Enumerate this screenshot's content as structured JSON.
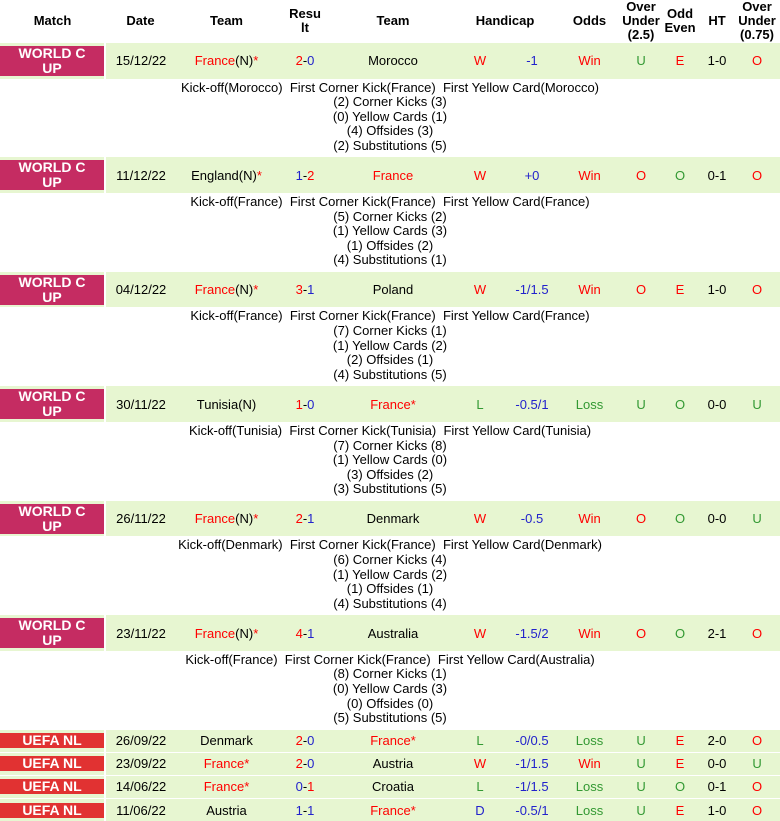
{
  "header": {
    "cols": [
      "Match",
      "Date",
      "Team",
      "Result",
      "Team",
      "Handicap",
      "Odds",
      "Over Under (2.5)",
      "Odd Even",
      "HT",
      "Over Under (0.75)"
    ]
  },
  "symbols": {
    "star": "*",
    "dash": "-"
  },
  "colors": {
    "row_green": "#e7f6d1",
    "worldcup_badge": "#c52c62",
    "uefanl_badge": "#e13232",
    "win_red": "#ff0000",
    "loss_green": "#339933",
    "handicap_blue": "#2222cc"
  },
  "rows": [
    {
      "competition": "WORLD CUP",
      "type": "worldcup",
      "date": "15/12/22",
      "home": {
        "name": "France",
        "suffix": "(N)",
        "star": true,
        "red": true
      },
      "result": {
        "home": "2",
        "away": "0",
        "home_color": "red",
        "away_color": "blue"
      },
      "away": {
        "name": "Morocco",
        "suffix": "",
        "star": false,
        "red": false
      },
      "wld": {
        "text": "W",
        "color": "red"
      },
      "handicap": "-1",
      "odds": {
        "text": "Win",
        "color": "red"
      },
      "over_under_25": {
        "text": "U",
        "color": "green"
      },
      "odd_even": {
        "text": "E",
        "color": "red"
      },
      "ht": "1-0",
      "over_under_075": {
        "text": "O",
        "color": "red"
      },
      "details": {
        "firsts": "Kick-off(Morocco)  First Corner Kick(France)  First Yellow Card(Morocco)",
        "stats": [
          "(2) Corner Kicks (3)",
          "(0) Yellow Cards (1)",
          "(4) Offsides (3)",
          "(2) Substitutions (5)"
        ]
      }
    },
    {
      "competition": "WORLD CUP",
      "type": "worldcup",
      "date": "11/12/22",
      "home": {
        "name": "England",
        "suffix": "(N)",
        "star": true,
        "red": false
      },
      "result": {
        "home": "1",
        "away": "2",
        "home_color": "blue",
        "away_color": "red"
      },
      "away": {
        "name": "France",
        "suffix": "",
        "star": false,
        "red": true
      },
      "wld": {
        "text": "W",
        "color": "red"
      },
      "handicap": "+0",
      "odds": {
        "text": "Win",
        "color": "red"
      },
      "over_under_25": {
        "text": "O",
        "color": "red"
      },
      "odd_even": {
        "text": "O",
        "color": "green"
      },
      "ht": "0-1",
      "over_under_075": {
        "text": "O",
        "color": "red"
      },
      "details": {
        "firsts": "Kick-off(France)  First Corner Kick(France)  First Yellow Card(France)",
        "stats": [
          "(5) Corner Kicks (2)",
          "(1) Yellow Cards (3)",
          "(1) Offsides (2)",
          "(4) Substitutions (1)"
        ]
      }
    },
    {
      "competition": "WORLD CUP",
      "type": "worldcup",
      "date": "04/12/22",
      "home": {
        "name": "France",
        "suffix": "(N)",
        "star": true,
        "red": true
      },
      "result": {
        "home": "3",
        "away": "1",
        "home_color": "red",
        "away_color": "blue"
      },
      "away": {
        "name": "Poland",
        "suffix": "",
        "star": false,
        "red": false
      },
      "wld": {
        "text": "W",
        "color": "red"
      },
      "handicap": "-1/1.5",
      "odds": {
        "text": "Win",
        "color": "red"
      },
      "over_under_25": {
        "text": "O",
        "color": "red"
      },
      "odd_even": {
        "text": "E",
        "color": "red"
      },
      "ht": "1-0",
      "over_under_075": {
        "text": "O",
        "color": "red"
      },
      "details": {
        "firsts": "Kick-off(France)  First Corner Kick(France)  First Yellow Card(France)",
        "stats": [
          "(7) Corner Kicks (1)",
          "(1) Yellow Cards (2)",
          "(2) Offsides (1)",
          "(4) Substitutions (5)"
        ]
      }
    },
    {
      "competition": "WORLD CUP",
      "type": "worldcup",
      "date": "30/11/22",
      "home": {
        "name": "Tunisia",
        "suffix": "(N)",
        "star": false,
        "red": false
      },
      "result": {
        "home": "1",
        "away": "0",
        "home_color": "red",
        "away_color": "blue"
      },
      "away": {
        "name": "France",
        "suffix": "",
        "star": true,
        "red": true
      },
      "wld": {
        "text": "L",
        "color": "green"
      },
      "handicap": "-0.5/1",
      "odds": {
        "text": "Loss",
        "color": "green"
      },
      "over_under_25": {
        "text": "U",
        "color": "green"
      },
      "odd_even": {
        "text": "O",
        "color": "green"
      },
      "ht": "0-0",
      "over_under_075": {
        "text": "U",
        "color": "green"
      },
      "details": {
        "firsts": "Kick-off(Tunisia)  First Corner Kick(Tunisia)  First Yellow Card(Tunisia)",
        "stats": [
          "(7) Corner Kicks (8)",
          "(1) Yellow Cards (0)",
          "(3) Offsides (2)",
          "(3) Substitutions (5)"
        ]
      }
    },
    {
      "competition": "WORLD CUP",
      "type": "worldcup",
      "date": "26/11/22",
      "home": {
        "name": "France",
        "suffix": "(N)",
        "star": true,
        "red": true
      },
      "result": {
        "home": "2",
        "away": "1",
        "home_color": "red",
        "away_color": "blue"
      },
      "away": {
        "name": "Denmark",
        "suffix": "",
        "star": false,
        "red": false
      },
      "wld": {
        "text": "W",
        "color": "red"
      },
      "handicap": "-0.5",
      "odds": {
        "text": "Win",
        "color": "red"
      },
      "over_under_25": {
        "text": "O",
        "color": "red"
      },
      "odd_even": {
        "text": "O",
        "color": "green"
      },
      "ht": "0-0",
      "over_under_075": {
        "text": "U",
        "color": "green"
      },
      "details": {
        "firsts": "Kick-off(Denmark)  First Corner Kick(France)  First Yellow Card(Denmark)",
        "stats": [
          "(6) Corner Kicks (4)",
          "(1) Yellow Cards (2)",
          "(1) Offsides (1)",
          "(4) Substitutions (4)"
        ]
      }
    },
    {
      "competition": "WORLD CUP",
      "type": "worldcup",
      "date": "23/11/22",
      "home": {
        "name": "France",
        "suffix": "(N)",
        "star": true,
        "red": true
      },
      "result": {
        "home": "4",
        "away": "1",
        "home_color": "red",
        "away_color": "blue"
      },
      "away": {
        "name": "Australia",
        "suffix": "",
        "star": false,
        "red": false
      },
      "wld": {
        "text": "W",
        "color": "red"
      },
      "handicap": "-1.5/2",
      "odds": {
        "text": "Win",
        "color": "red"
      },
      "over_under_25": {
        "text": "O",
        "color": "red"
      },
      "odd_even": {
        "text": "O",
        "color": "green"
      },
      "ht": "2-1",
      "over_under_075": {
        "text": "O",
        "color": "red"
      },
      "details": {
        "firsts": "Kick-off(France)  First Corner Kick(France)  First Yellow Card(Australia)",
        "stats": [
          "(8) Corner Kicks (1)",
          "(0) Yellow Cards (3)",
          "(0) Offsides (0)",
          "(5) Substitutions (5)"
        ]
      }
    },
    {
      "competition": "UEFA NL",
      "type": "uefanl",
      "date": "26/09/22",
      "home": {
        "name": "Denmark",
        "suffix": "",
        "star": false,
        "red": false
      },
      "result": {
        "home": "2",
        "away": "0",
        "home_color": "red",
        "away_color": "blue"
      },
      "away": {
        "name": "France",
        "suffix": "",
        "star": true,
        "red": true
      },
      "wld": {
        "text": "L",
        "color": "green"
      },
      "handicap": "-0/0.5",
      "odds": {
        "text": "Loss",
        "color": "green"
      },
      "over_under_25": {
        "text": "U",
        "color": "green"
      },
      "odd_even": {
        "text": "E",
        "color": "red"
      },
      "ht": "2-0",
      "over_under_075": {
        "text": "O",
        "color": "red"
      },
      "details": null
    },
    {
      "competition": "UEFA NL",
      "type": "uefanl",
      "date": "23/09/22",
      "home": {
        "name": "France",
        "suffix": "",
        "star": true,
        "red": true
      },
      "result": {
        "home": "2",
        "away": "0",
        "home_color": "red",
        "away_color": "blue"
      },
      "away": {
        "name": "Austria",
        "suffix": "",
        "star": false,
        "red": false
      },
      "wld": {
        "text": "W",
        "color": "red"
      },
      "handicap": "-1/1.5",
      "odds": {
        "text": "Win",
        "color": "red"
      },
      "over_under_25": {
        "text": "U",
        "color": "green"
      },
      "odd_even": {
        "text": "E",
        "color": "red"
      },
      "ht": "0-0",
      "over_under_075": {
        "text": "U",
        "color": "green"
      },
      "details": null
    },
    {
      "competition": "UEFA NL",
      "type": "uefanl",
      "date": "14/06/22",
      "home": {
        "name": "France",
        "suffix": "",
        "star": true,
        "red": true
      },
      "result": {
        "home": "0",
        "away": "1",
        "home_color": "blue",
        "away_color": "red"
      },
      "away": {
        "name": "Croatia",
        "suffix": "",
        "star": false,
        "red": false
      },
      "wld": {
        "text": "L",
        "color": "green"
      },
      "handicap": "-1/1.5",
      "odds": {
        "text": "Loss",
        "color": "green"
      },
      "over_under_25": {
        "text": "U",
        "color": "green"
      },
      "odd_even": {
        "text": "O",
        "color": "green"
      },
      "ht": "0-1",
      "over_under_075": {
        "text": "O",
        "color": "red"
      },
      "details": null
    },
    {
      "competition": "UEFA NL",
      "type": "uefanl",
      "date": "11/06/22",
      "home": {
        "name": "Austria",
        "suffix": "",
        "star": false,
        "red": false
      },
      "result": {
        "home": "1",
        "away": "1",
        "home_color": "blue",
        "away_color": "blue"
      },
      "away": {
        "name": "France",
        "suffix": "",
        "star": true,
        "red": true
      },
      "wld": {
        "text": "D",
        "color": "blue"
      },
      "handicap": "-0.5/1",
      "odds": {
        "text": "Loss",
        "color": "green"
      },
      "over_under_25": {
        "text": "U",
        "color": "green"
      },
      "odd_even": {
        "text": "E",
        "color": "red"
      },
      "ht": "1-0",
      "over_under_075": {
        "text": "O",
        "color": "red"
      },
      "details": null
    }
  ]
}
